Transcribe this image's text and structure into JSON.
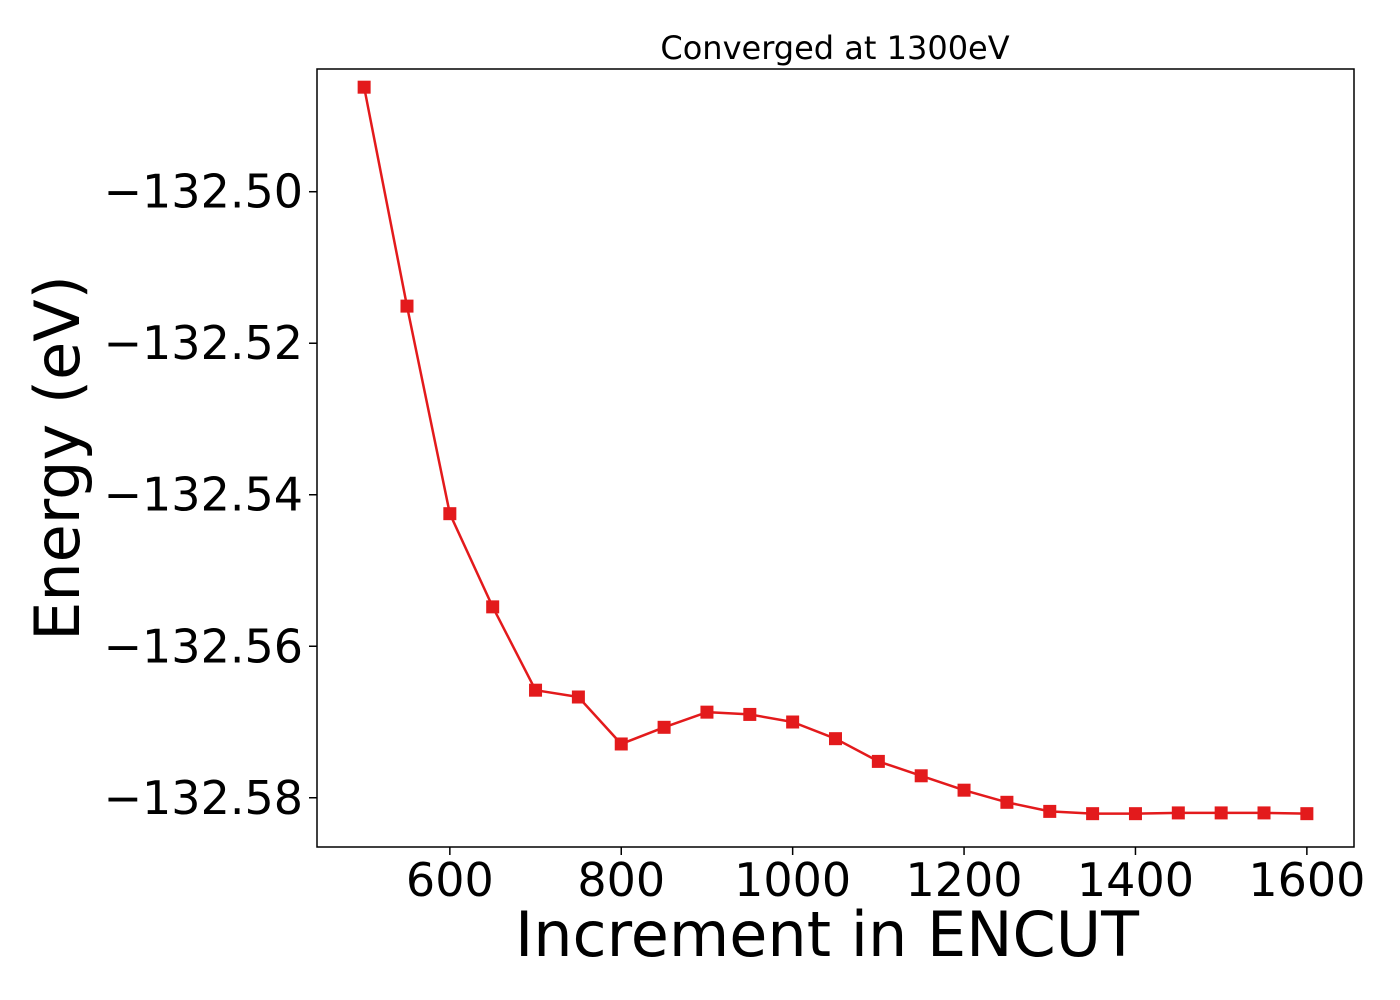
{
  "chart_data": {
    "type": "line",
    "title": "Converged at 1300eV",
    "xlabel": "Increment in ENCUT",
    "ylabel": "Energy (eV)",
    "xlim": [
      445,
      1655
    ],
    "ylim": [
      -132.5865,
      -132.4838
    ],
    "xticks": [
      600,
      800,
      1000,
      1200,
      1400,
      1600
    ],
    "yticks": [
      -132.5,
      -132.52,
      -132.54,
      -132.56,
      -132.58
    ],
    "ytick_labels": [
      "−132.50",
      "−132.52",
      "−132.54",
      "−132.56",
      "−132.58"
    ],
    "grid": false,
    "marker": "square",
    "series": [
      {
        "color": "#e31a1c",
        "x": [
          500,
          550,
          600,
          650,
          700,
          750,
          800,
          850,
          900,
          950,
          1000,
          1050,
          1100,
          1150,
          1200,
          1250,
          1300,
          1350,
          1400,
          1450,
          1500,
          1550,
          1600
        ],
        "y": [
          -132.4862,
          -132.5151,
          -132.5425,
          -132.5548,
          -132.5658,
          -132.5667,
          -132.5729,
          -132.5707,
          -132.5687,
          -132.569,
          -132.57,
          -132.5722,
          -132.5752,
          -132.5771,
          -132.579,
          -132.5806,
          -132.5818,
          -132.5821,
          -132.5821,
          -132.582,
          -132.582,
          -132.582,
          -132.5821
        ]
      }
    ]
  }
}
